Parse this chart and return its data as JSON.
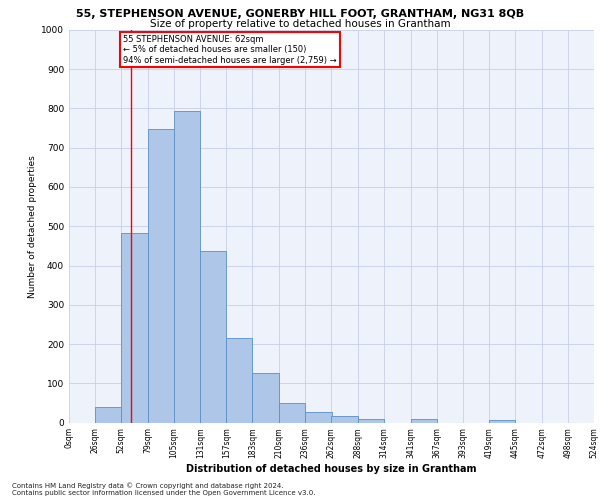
{
  "title": "55, STEPHENSON AVENUE, GONERBY HILL FOOT, GRANTHAM, NG31 8QB",
  "subtitle": "Size of property relative to detached houses in Grantham",
  "xlabel": "Distribution of detached houses by size in Grantham",
  "ylabel": "Number of detached properties",
  "bar_left_edges": [
    0,
    26,
    52,
    79,
    105,
    131,
    157,
    183,
    210,
    236,
    262,
    288,
    314,
    341,
    367,
    393,
    419,
    445,
    472,
    498
  ],
  "bar_heights": [
    0,
    40,
    482,
    748,
    793,
    436,
    216,
    127,
    50,
    28,
    16,
    10,
    0,
    8,
    0,
    0,
    7,
    0,
    0,
    0
  ],
  "bar_widths": [
    26,
    26,
    27,
    26,
    26,
    26,
    26,
    27,
    26,
    26,
    26,
    26,
    27,
    26,
    26,
    26,
    26,
    27,
    26,
    26
  ],
  "bar_color": "#aec6e8",
  "bar_edge_color": "#5a8fc4",
  "x_tick_labels": [
    "0sqm",
    "26sqm",
    "52sqm",
    "79sqm",
    "105sqm",
    "131sqm",
    "157sqm",
    "183sqm",
    "210sqm",
    "236sqm",
    "262sqm",
    "288sqm",
    "314sqm",
    "341sqm",
    "367sqm",
    "393sqm",
    "419sqm",
    "445sqm",
    "472sqm",
    "498sqm",
    "524sqm"
  ],
  "x_tick_positions": [
    0,
    26,
    52,
    79,
    105,
    131,
    157,
    183,
    210,
    236,
    262,
    288,
    314,
    341,
    367,
    393,
    419,
    445,
    472,
    498,
    524
  ],
  "ylim": [
    0,
    1000
  ],
  "xlim": [
    0,
    524
  ],
  "y_ticks": [
    0,
    100,
    200,
    300,
    400,
    500,
    600,
    700,
    800,
    900,
    1000
  ],
  "property_line_x": 62,
  "annotation_title": "55 STEPHENSON AVENUE: 62sqm",
  "annotation_line1": "← 5% of detached houses are smaller (150)",
  "annotation_line2": "94% of semi-detached houses are larger (2,759) →",
  "annotation_box_color": "#ff0000",
  "footer_line1": "Contains HM Land Registry data © Crown copyright and database right 2024.",
  "footer_line2": "Contains public sector information licensed under the Open Government Licence v3.0.",
  "bg_color": "#eef2fb",
  "grid_color": "#c8d0e8"
}
